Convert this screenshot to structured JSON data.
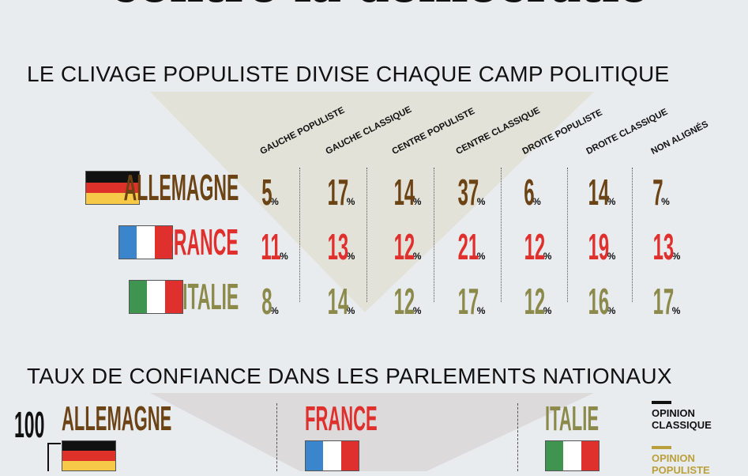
{
  "headline": "contre la démocratie",
  "section1": {
    "title": "LE CLIVAGE POPULISTE DIVISE CHAQUE CAMP POLITIQUE"
  },
  "section2": {
    "title": "TAUX DE CONFIANCE DANS LES PARLEMENTS NATIONAUX",
    "axis_top": "100",
    "countries": [
      "ALLEMAGNE",
      "FRANCE",
      "ITALIE"
    ],
    "legend": [
      {
        "label_1": "OPINION",
        "label_2": "CLASSIQUE",
        "color": "#111111"
      },
      {
        "label_1": "OPINION",
        "label_2": "POPULISTE",
        "color": "#b9a03a"
      }
    ]
  },
  "colors": {
    "ALLEMAGNE": "#6b4314",
    "FRANCE": "#e0302e",
    "ITALIE": "#8c8a4a",
    "background": "#e9ecef",
    "triangle1": "#e3e2d9",
    "triangle2": "#dcdadb"
  },
  "chart_data": {
    "type": "table",
    "title": "LE CLIVAGE POPULISTE DIVISE CHAQUE CAMP POLITIQUE",
    "unit": "%",
    "categories": [
      "GAUCHE POPULISTE",
      "GAUCHE CLASSIQUE",
      "CENTRE POPULISTE",
      "CENTRE CLASSIQUE",
      "DROITE POPULISTE",
      "DROITE CLASSIQUE",
      "NON ALIGNÉS"
    ],
    "series": [
      {
        "name": "ALLEMAGNE",
        "values": [
          5,
          17,
          14,
          37,
          6,
          14,
          7
        ]
      },
      {
        "name": "FRANCE",
        "values": [
          11,
          13,
          12,
          21,
          12,
          19,
          13
        ]
      },
      {
        "name": "ITALIE",
        "values": [
          8,
          14,
          12,
          17,
          12,
          16,
          17
        ]
      }
    ]
  }
}
